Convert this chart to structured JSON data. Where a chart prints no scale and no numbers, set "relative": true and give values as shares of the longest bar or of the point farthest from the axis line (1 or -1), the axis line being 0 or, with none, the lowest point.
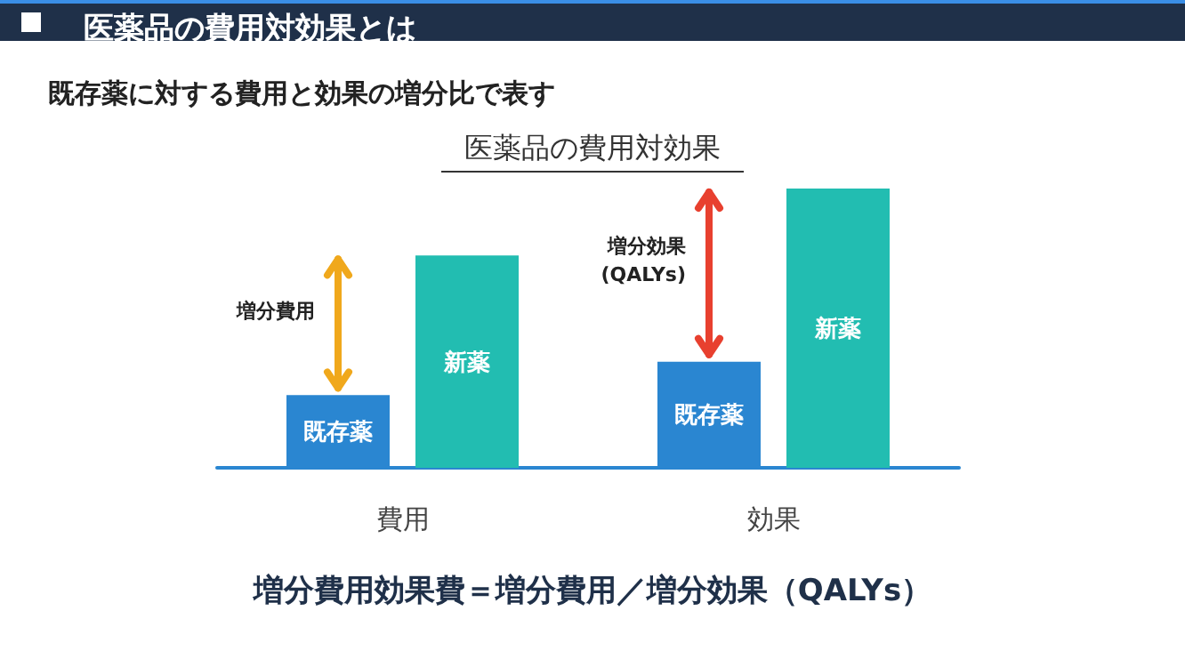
{
  "chart_data": {
    "type": "bar",
    "title": "医薬品の費用対効果とは",
    "subtitle": "既存薬に対する費用と効果の増分比で表す",
    "categories": [
      "費用",
      "効果"
    ],
    "relative": true,
    "series": [
      {
        "name": "既存薬",
        "color": "#2a86d1",
        "values": [
          0.26,
          0.38
        ]
      },
      {
        "name": "新薬",
        "color": "#22bdb1",
        "values": [
          0.76,
          1
        ]
      }
    ],
    "annotations": [
      "医薬品の費用対効果",
      "増分費用",
      "増分効果\n(QALYs)",
      "増分費用効果費＝増分費用／増分効果（QALYs）"
    ],
    "legend": false,
    "grid": false
  }
}
